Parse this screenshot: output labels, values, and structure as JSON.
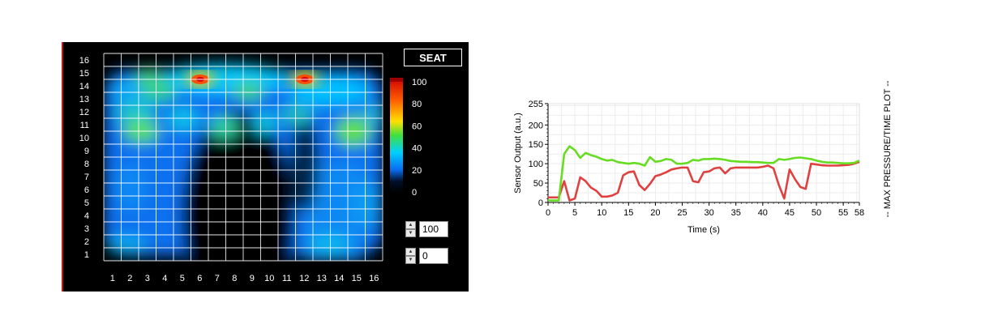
{
  "heatmap": {
    "title": "SEAT",
    "x_ticks": [
      "1",
      "2",
      "3",
      "4",
      "5",
      "6",
      "7",
      "8",
      "9",
      "10",
      "11",
      "12",
      "13",
      "14",
      "15",
      "16"
    ],
    "y_ticks": [
      "1",
      "2",
      "3",
      "4",
      "5",
      "6",
      "7",
      "8",
      "9",
      "10",
      "11",
      "12",
      "13",
      "14",
      "15",
      "16"
    ],
    "scale_labels": [
      "100",
      "80",
      "60",
      "40",
      "20",
      "0"
    ],
    "max_value": "100",
    "min_value": "0",
    "colors": {
      "low": "#000000",
      "mid_low": "#0a6cf0",
      "mid": "#00d0ff",
      "mid_high": "#40e040",
      "high": "#ffd000",
      "max": "#e00000"
    }
  },
  "chart_data": {
    "type": "line",
    "title": "MAX PRESSURE/TIME PLOT",
    "xlabel": "Time (s)",
    "ylabel": "Sensor Output (a.u.)",
    "xlim": [
      0,
      58
    ],
    "ylim": [
      0,
      255
    ],
    "x_ticks": [
      "0",
      "5",
      "10",
      "15",
      "20",
      "25",
      "30",
      "35",
      "40",
      "45",
      "50",
      "55",
      "58"
    ],
    "y_ticks": [
      "0",
      "50",
      "100",
      "150",
      "200",
      "255"
    ],
    "grid": true,
    "series": [
      {
        "color": "#66dd22",
        "points": [
          [
            0,
            5
          ],
          [
            2,
            5
          ],
          [
            3,
            125
          ],
          [
            4,
            145
          ],
          [
            5,
            135
          ],
          [
            6,
            115
          ],
          [
            7,
            128
          ],
          [
            8,
            122
          ],
          [
            9,
            118
          ],
          [
            10,
            112
          ],
          [
            11,
            108
          ],
          [
            12,
            110
          ],
          [
            13,
            104
          ],
          [
            14,
            102
          ],
          [
            15,
            100
          ],
          [
            16,
            102
          ],
          [
            17,
            100
          ],
          [
            18,
            95
          ],
          [
            19,
            117
          ],
          [
            20,
            105
          ],
          [
            21,
            107
          ],
          [
            22,
            112
          ],
          [
            23,
            110
          ],
          [
            24,
            100
          ],
          [
            25,
            100
          ],
          [
            26,
            102
          ],
          [
            27,
            110
          ],
          [
            28,
            108
          ],
          [
            29,
            112
          ],
          [
            30,
            112
          ],
          [
            31,
            113
          ],
          [
            32,
            112
          ],
          [
            33,
            110
          ],
          [
            34,
            107
          ],
          [
            35,
            106
          ],
          [
            36,
            105
          ],
          [
            37,
            105
          ],
          [
            38,
            104
          ],
          [
            39,
            104
          ],
          [
            40,
            103
          ],
          [
            41,
            102
          ],
          [
            42,
            102
          ],
          [
            43,
            112
          ],
          [
            44,
            110
          ],
          [
            45,
            112
          ],
          [
            46,
            115
          ],
          [
            47,
            116
          ],
          [
            48,
            114
          ],
          [
            49,
            112
          ],
          [
            50,
            108
          ],
          [
            51,
            105
          ],
          [
            52,
            103
          ],
          [
            53,
            103
          ],
          [
            54,
            102
          ],
          [
            55,
            101
          ],
          [
            56,
            101
          ],
          [
            57,
            102
          ],
          [
            58,
            108
          ]
        ]
      },
      {
        "color": "#e04040",
        "points": [
          [
            0,
            13
          ],
          [
            2,
            13
          ],
          [
            3,
            55
          ],
          [
            4,
            5
          ],
          [
            5,
            10
          ],
          [
            6,
            65
          ],
          [
            7,
            55
          ],
          [
            8,
            38
          ],
          [
            9,
            30
          ],
          [
            10,
            15
          ],
          [
            11,
            15
          ],
          [
            12,
            18
          ],
          [
            13,
            25
          ],
          [
            14,
            70
          ],
          [
            15,
            78
          ],
          [
            16,
            80
          ],
          [
            17,
            45
          ],
          [
            18,
            32
          ],
          [
            19,
            48
          ],
          [
            20,
            68
          ],
          [
            21,
            72
          ],
          [
            22,
            78
          ],
          [
            23,
            85
          ],
          [
            24,
            88
          ],
          [
            25,
            90
          ],
          [
            26,
            90
          ],
          [
            27,
            55
          ],
          [
            28,
            52
          ],
          [
            29,
            78
          ],
          [
            30,
            80
          ],
          [
            31,
            88
          ],
          [
            32,
            90
          ],
          [
            33,
            75
          ],
          [
            34,
            88
          ],
          [
            35,
            90
          ],
          [
            36,
            90
          ],
          [
            37,
            90
          ],
          [
            38,
            90
          ],
          [
            39,
            90
          ],
          [
            40,
            92
          ],
          [
            41,
            95
          ],
          [
            42,
            88
          ],
          [
            43,
            45
          ],
          [
            44,
            10
          ],
          [
            45,
            85
          ],
          [
            46,
            60
          ],
          [
            47,
            40
          ],
          [
            48,
            35
          ],
          [
            49,
            100
          ],
          [
            50,
            98
          ],
          [
            51,
            96
          ],
          [
            52,
            95
          ],
          [
            53,
            95
          ],
          [
            54,
            95
          ],
          [
            55,
            96
          ],
          [
            56,
            97
          ],
          [
            57,
            100
          ],
          [
            58,
            105
          ]
        ]
      }
    ]
  }
}
